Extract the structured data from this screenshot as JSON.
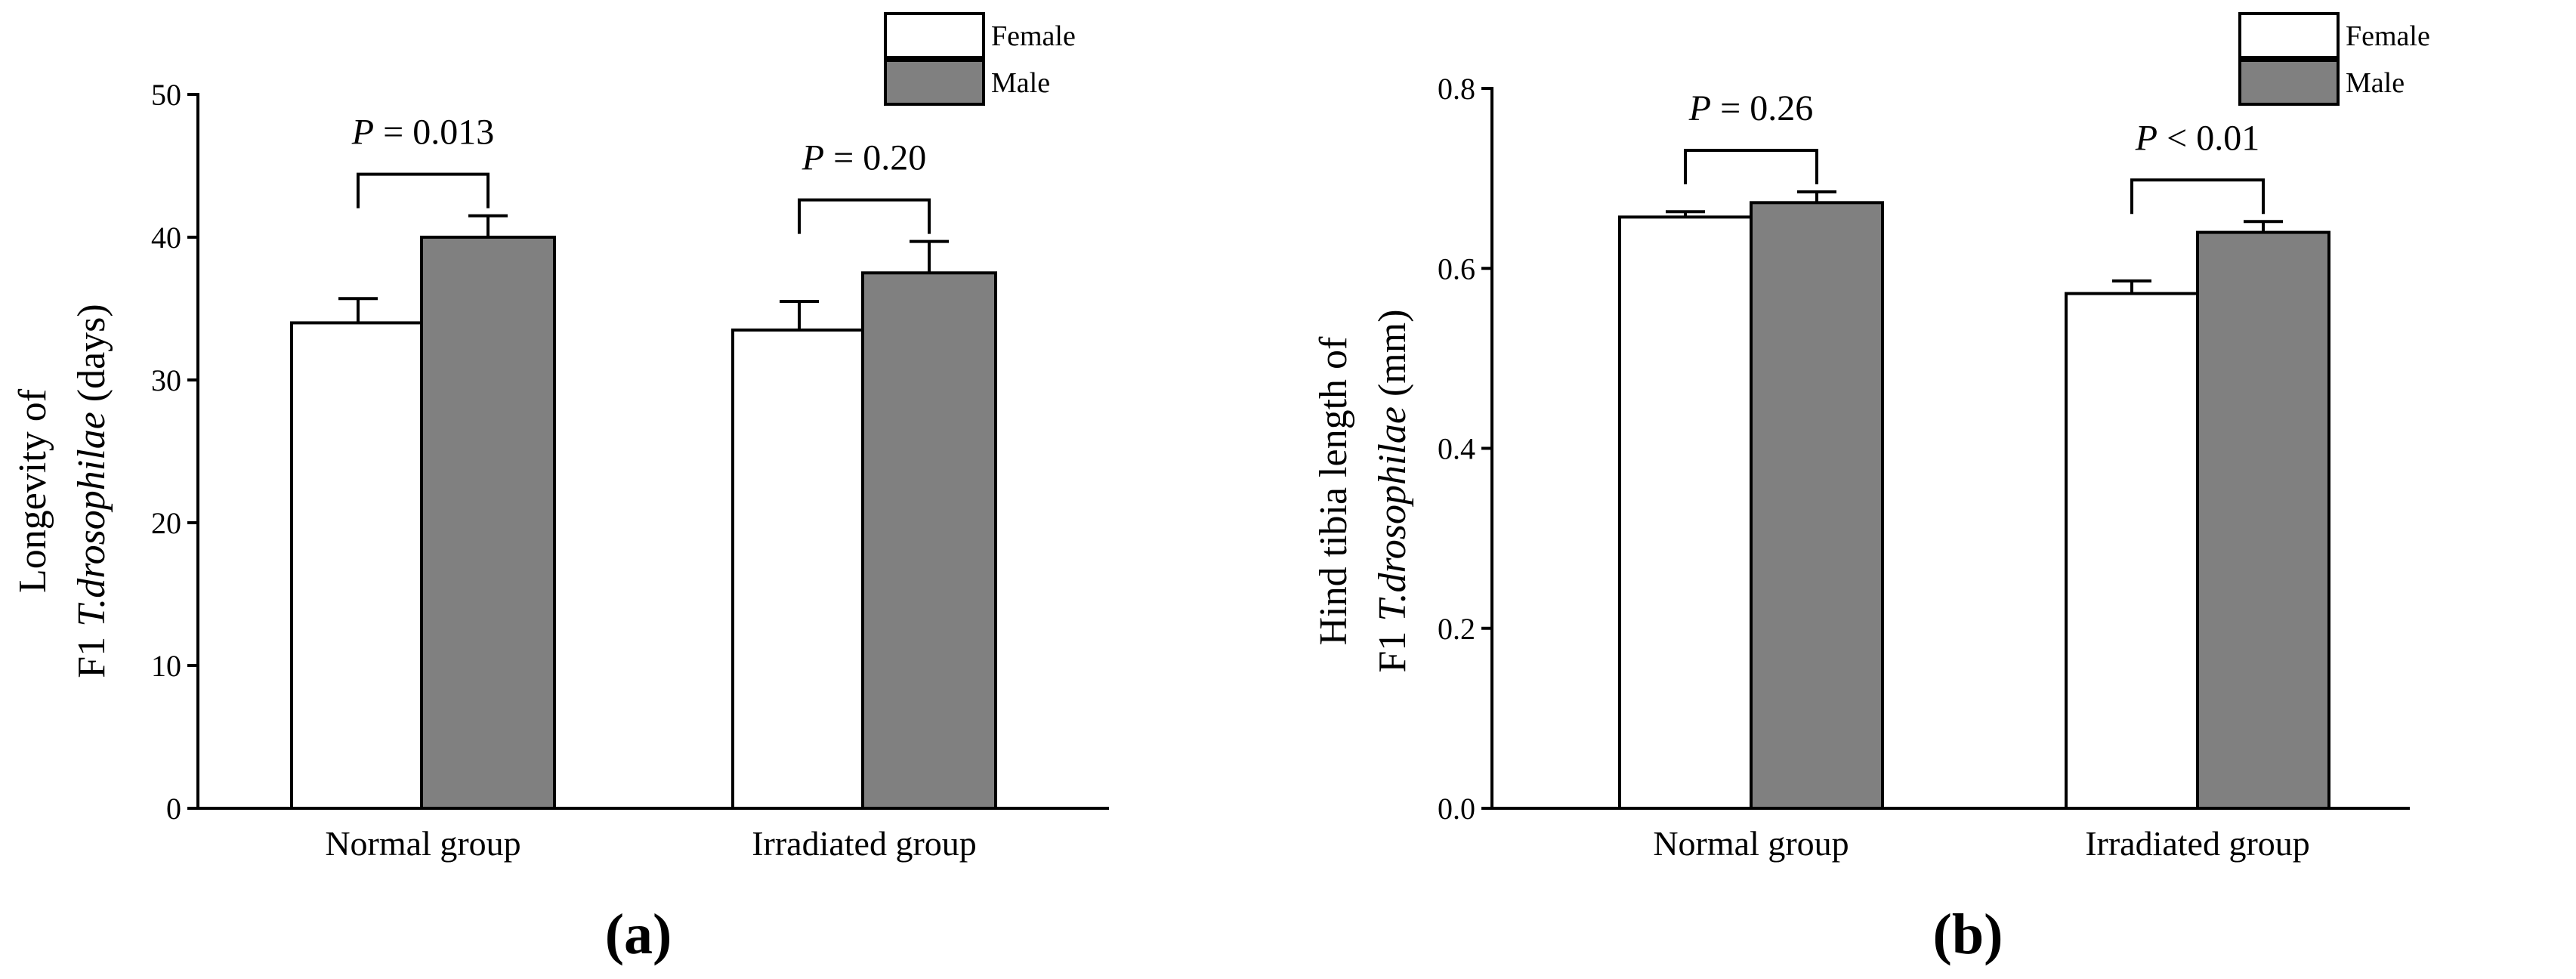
{
  "colors": {
    "female": "#ffffff",
    "male": "#808080",
    "axis": "#000000"
  },
  "chart_data": [
    {
      "type": "bar",
      "panel_label": "(a)",
      "ylabel_line1": "Longevity of",
      "ylabel_line2_prefix": "F1 ",
      "ylabel_line2_italic": "T.drosophilae",
      "ylabel_line2_suffix": " (days)",
      "ylim": [
        0,
        50
      ],
      "yticks": [
        0,
        10,
        20,
        30,
        40,
        50
      ],
      "ytick_labels": [
        "0",
        "10",
        "20",
        "30",
        "40",
        "50"
      ],
      "categories": [
        "Normal group",
        "Irradiated group"
      ],
      "series": [
        {
          "name": "Female",
          "values": [
            34,
            33.5
          ],
          "errors": [
            1.7,
            2.0
          ]
        },
        {
          "name": "Male",
          "values": [
            40,
            37.5
          ],
          "errors": [
            1.5,
            2.2
          ]
        }
      ],
      "annotations": [
        {
          "p_italic": "P",
          "p_text": " = 0.013"
        },
        {
          "p_italic": "P",
          "p_text": " = 0.20"
        }
      ],
      "legend": [
        "Female",
        "Male"
      ]
    },
    {
      "type": "bar",
      "panel_label": "(b)",
      "ylabel_line1": "Hind tibia length of",
      "ylabel_line2_prefix": "F1 ",
      "ylabel_line2_italic": "T.drosophilae",
      "ylabel_line2_suffix": " (mm)",
      "ylim": [
        0,
        0.8
      ],
      "yticks": [
        0,
        0.2,
        0.4,
        0.6,
        0.8
      ],
      "ytick_labels": [
        "0.0",
        "0.2",
        "0.4",
        "0.6",
        "0.8"
      ],
      "categories": [
        "Normal group",
        "Irradiated group"
      ],
      "series": [
        {
          "name": "Female",
          "values": [
            0.657,
            0.572
          ],
          "errors": [
            0.006,
            0.014
          ]
        },
        {
          "name": "Male",
          "values": [
            0.673,
            0.64
          ],
          "errors": [
            0.012,
            0.012
          ]
        }
      ],
      "annotations": [
        {
          "p_italic": "P",
          "p_text": " = 0.26"
        },
        {
          "p_italic": "P",
          "p_text": " < 0.01"
        }
      ],
      "legend": [
        "Female",
        "Male"
      ]
    }
  ]
}
